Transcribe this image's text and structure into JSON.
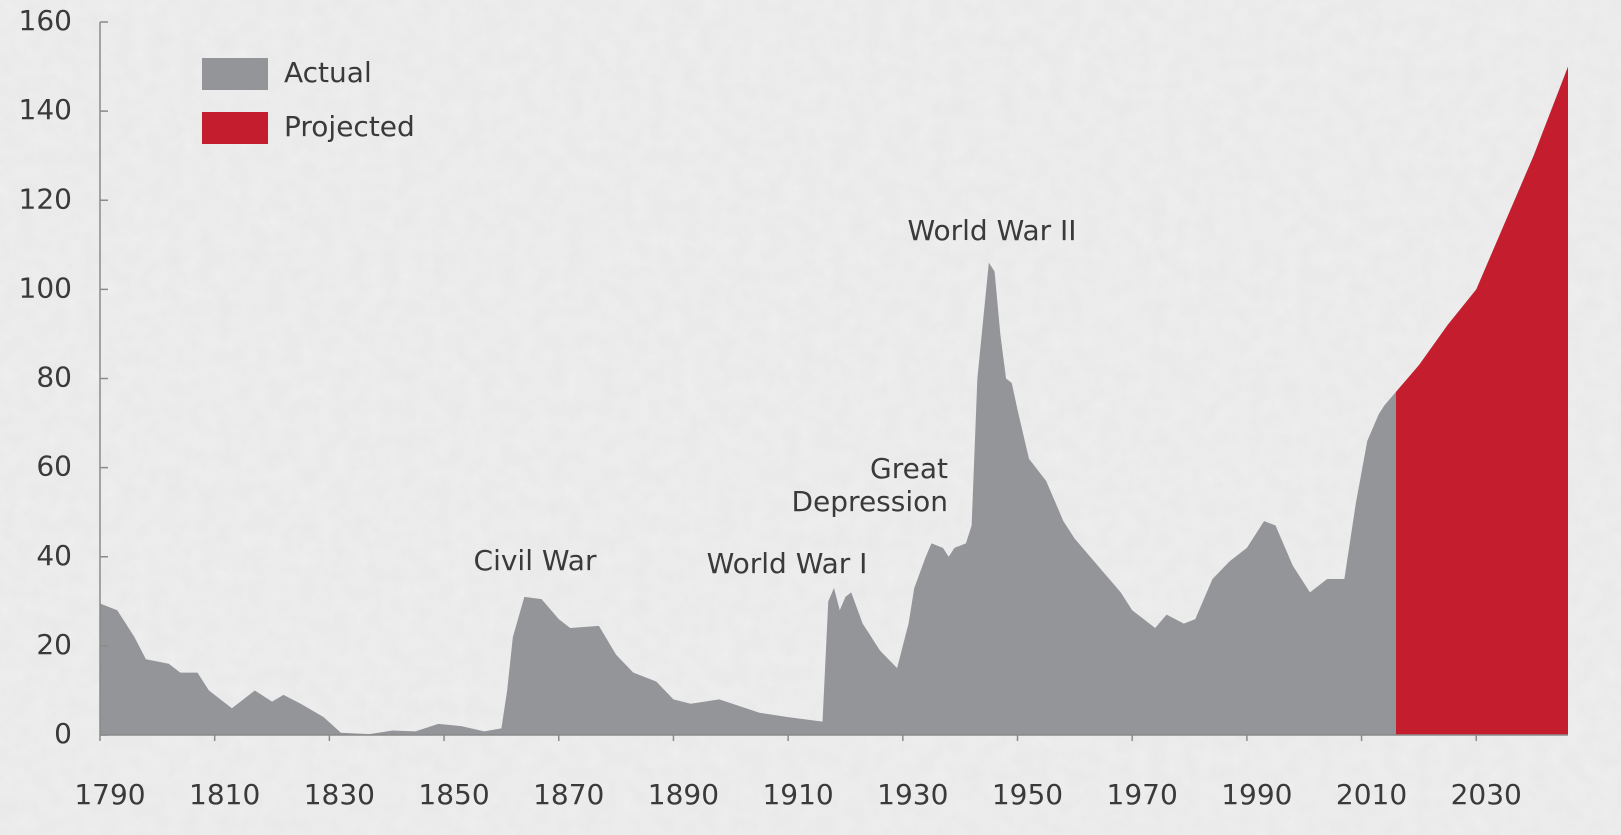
{
  "chart_data": {
    "type": "area",
    "x": [
      1790,
      1793,
      1796,
      1798,
      1802,
      1804,
      1807,
      1809,
      1813,
      1817,
      1820,
      1822,
      1825,
      1829,
      1832,
      1837,
      1841,
      1845,
      1849,
      1853,
      1857,
      1860,
      1861,
      1862,
      1864,
      1867,
      1870,
      1872,
      1877,
      1880,
      1883,
      1887,
      1890,
      1893,
      1898,
      1905,
      1910,
      1916,
      1917,
      1918,
      1919,
      1920,
      1921,
      1923,
      1926,
      1929,
      1931,
      1932,
      1934,
      1935,
      1937,
      1938,
      1939,
      1941,
      1942,
      1943,
      1945,
      1946,
      1947,
      1948,
      1949,
      1950,
      1952,
      1955,
      1958,
      1960,
      1964,
      1968,
      1970,
      1974,
      1976,
      1979,
      1981,
      1984,
      1987,
      1990,
      1993,
      1995,
      1998,
      2001,
      2004,
      2007,
      2009,
      2011,
      2013,
      2014,
      2016,
      2020,
      2025,
      2030,
      2035,
      2040,
      2046
    ],
    "series": [
      {
        "name": "Actual",
        "color": "#939598",
        "values": [
          29.5,
          28,
          22,
          17,
          16,
          14,
          14,
          10,
          6,
          10,
          7.5,
          9,
          7,
          4,
          0.5,
          0.2,
          1,
          0.8,
          2.5,
          2,
          0.8,
          1.5,
          10,
          22,
          31,
          30.5,
          26,
          24,
          24.5,
          18,
          14,
          12,
          8,
          7,
          8,
          5,
          4,
          3,
          30,
          33,
          28,
          31,
          32,
          25,
          19,
          15,
          25,
          33,
          40,
          43,
          42,
          40,
          42,
          43,
          47,
          80,
          106,
          104,
          90,
          80,
          79,
          73,
          62,
          57,
          48,
          44,
          38,
          32,
          28,
          24,
          27,
          25,
          26,
          35,
          39,
          42,
          48,
          47,
          38,
          32,
          35,
          35,
          52,
          66,
          72,
          74,
          77,
          null,
          null,
          null,
          null,
          null,
          null
        ]
      },
      {
        "name": "Projected",
        "color": "#c41e2e",
        "values": [
          null,
          null,
          null,
          null,
          null,
          null,
          null,
          null,
          null,
          null,
          null,
          null,
          null,
          null,
          null,
          null,
          null,
          null,
          null,
          null,
          null,
          null,
          null,
          null,
          null,
          null,
          null,
          null,
          null,
          null,
          null,
          null,
          null,
          null,
          null,
          null,
          null,
          null,
          null,
          null,
          null,
          null,
          null,
          null,
          null,
          null,
          null,
          null,
          null,
          null,
          null,
          null,
          null,
          null,
          null,
          null,
          null,
          null,
          null,
          null,
          null,
          null,
          null,
          null,
          null,
          null,
          null,
          null,
          null,
          null,
          null,
          null,
          null,
          null,
          null,
          null,
          null,
          null,
          null,
          null,
          null,
          null,
          null,
          null,
          null,
          null,
          77,
          83,
          92,
          100,
          115,
          130,
          150
        ]
      }
    ],
    "xlim": [
      1790,
      2046
    ],
    "xticks": [
      1790,
      1810,
      1830,
      1850,
      1870,
      1890,
      1910,
      1930,
      1950,
      1970,
      1990,
      2010,
      2030
    ],
    "ylim": [
      0,
      160
    ],
    "yticks": [
      0,
      20,
      40,
      60,
      80,
      100,
      120,
      140,
      160
    ],
    "legend": "upper left",
    "annotations": [
      {
        "lines": [
          "Civil War"
        ]
      },
      {
        "lines": [
          "World War I"
        ]
      },
      {
        "lines": [
          "Great",
          "Depression"
        ]
      },
      {
        "lines": [
          "World War II"
        ]
      }
    ]
  }
}
